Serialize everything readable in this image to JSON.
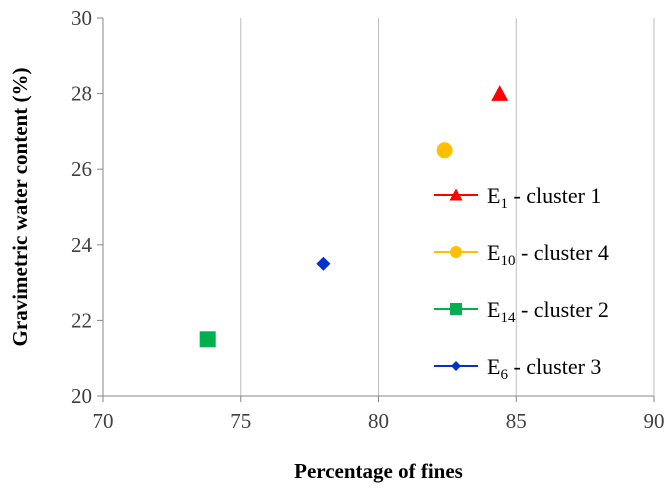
{
  "chart_data": {
    "type": "scatter",
    "xlabel": "Percentage of fines",
    "ylabel": "Gravimetric water content  (%)",
    "xlim": [
      70,
      90
    ],
    "ylim": [
      20,
      30
    ],
    "xticks": [
      70,
      75,
      80,
      85,
      90
    ],
    "yticks": [
      20,
      22,
      24,
      26,
      28,
      30
    ],
    "x_tick_labels": [
      "70",
      "75",
      "80",
      "85",
      "90"
    ],
    "y_tick_labels": [
      "20",
      "22",
      "24",
      "26",
      "28",
      "30"
    ],
    "grid": "vertical",
    "legend_position": "right",
    "series": [
      {
        "name": "E1 - cluster 1",
        "label_main": "E",
        "label_sub": "1",
        "label_rest": " - cluster 1",
        "marker": "triangle",
        "color": "#ff0000",
        "points": [
          {
            "x": 84.4,
            "y": 28.0
          }
        ]
      },
      {
        "name": "E10 - cluster 4",
        "label_main": "E",
        "label_sub": "10",
        "label_rest": " - cluster 4",
        "marker": "circle",
        "color": "#ffc000",
        "points": [
          {
            "x": 82.4,
            "y": 26.5
          }
        ]
      },
      {
        "name": "E14 - cluster 2",
        "label_main": "E",
        "label_sub": "14",
        "label_rest": " - cluster 2",
        "marker": "square",
        "color": "#00b050",
        "points": [
          {
            "x": 73.8,
            "y": 21.5
          }
        ]
      },
      {
        "name": "E6 - cluster 3",
        "label_main": "E",
        "label_sub": "6",
        "label_rest": " - cluster 3",
        "marker": "diamond",
        "color": "#0033cc",
        "points": [
          {
            "x": 78.0,
            "y": 23.5
          }
        ]
      }
    ]
  }
}
